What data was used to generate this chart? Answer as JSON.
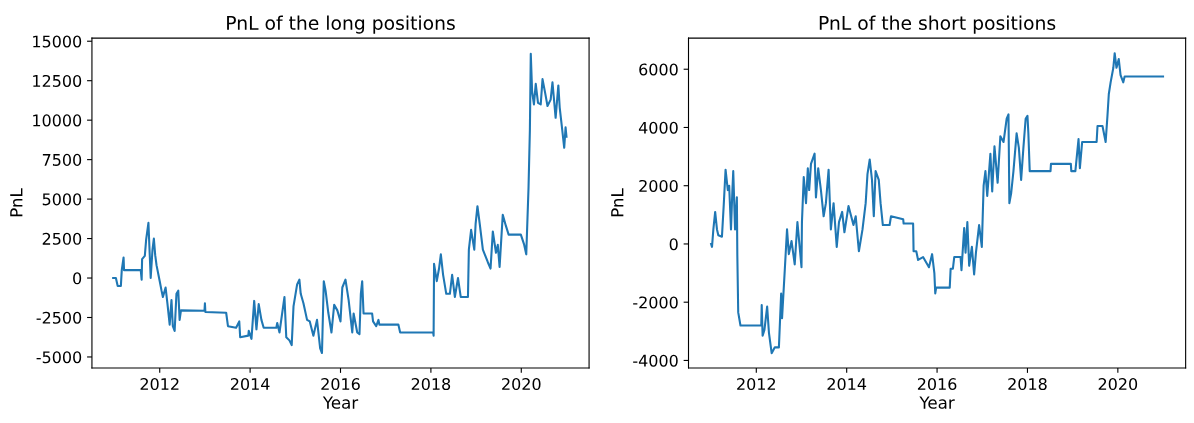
{
  "chart_data": [
    {
      "type": "line",
      "title": "PnL of the long positions",
      "xlabel": "Year",
      "ylabel": "PnL",
      "xlim": [
        2010.5,
        2021.5
      ],
      "xticks": [
        2012,
        2014,
        2016,
        2018,
        2020
      ],
      "ylim": [
        -5700,
        15200
      ],
      "yticks": [
        -5000,
        -2500,
        0,
        2500,
        5000,
        7500,
        10000,
        12500,
        15000
      ],
      "series": [
        {
          "color": "#1f77b4",
          "x": [
            2010.97,
            2011.03,
            2011.07,
            2011.14,
            2011.16,
            2011.2,
            2011.21,
            2011.58,
            2011.6,
            2011.61,
            2011.67,
            2011.7,
            2011.75,
            2011.78,
            2011.8,
            2011.84,
            2011.87,
            2011.9,
            2011.93,
            2012.0,
            2012.04,
            2012.07,
            2012.13,
            2012.17,
            2012.22,
            2012.26,
            2012.29,
            2012.33,
            2012.37,
            2012.41,
            2012.44,
            2012.47,
            2012.99,
            2013.0,
            2013.01,
            2013.47,
            2013.51,
            2013.69,
            2013.76,
            2013.78,
            2013.96,
            2013.97,
            2014.03,
            2014.09,
            2014.14,
            2014.19,
            2014.25,
            2014.3,
            2014.58,
            2014.6,
            2014.65,
            2014.76,
            2014.8,
            2014.87,
            2014.92,
            2014.96,
            2015.04,
            2015.09,
            2015.12,
            2015.18,
            2015.26,
            2015.32,
            2015.4,
            2015.48,
            2015.55,
            2015.59,
            2015.63,
            2015.67,
            2015.73,
            2015.8,
            2015.86,
            2015.93,
            2016.0,
            2016.04,
            2016.11,
            2016.18,
            2016.26,
            2016.29,
            2016.37,
            2016.42,
            2016.45,
            2016.48,
            2016.51,
            2016.7,
            2016.72,
            2016.79,
            2016.84,
            2016.86,
            2017.28,
            2017.32,
            2018.05,
            2018.06,
            2018.07,
            2018.13,
            2018.18,
            2018.22,
            2018.27,
            2018.34,
            2018.42,
            2018.47,
            2018.53,
            2018.6,
            2018.66,
            2018.77,
            2018.82,
            2018.84,
            2018.89,
            2018.96,
            2018.99,
            2019.03,
            2019.08,
            2019.15,
            2019.26,
            2019.32,
            2019.37,
            2019.44,
            2019.48,
            2019.52,
            2019.59,
            2019.66,
            2019.72,
            2019.99,
            2020.06,
            2020.11,
            2020.16,
            2020.19,
            2020.21,
            2020.24,
            2020.28,
            2020.32,
            2020.37,
            2020.43,
            2020.47,
            2020.53,
            2020.58,
            2020.65,
            2020.69,
            2020.76,
            2020.82,
            2020.85,
            2020.9,
            2020.95,
            2020.98,
            2021.0
          ],
          "values": [
            0,
            0,
            -500,
            -500,
            500,
            1300,
            500,
            500,
            -100,
            1200,
            1400,
            2450,
            3500,
            1400,
            0,
            1800,
            2500,
            1450,
            800,
            -200,
            -800,
            -1200,
            -600,
            -1600,
            -2950,
            -1400,
            -3050,
            -3350,
            -1000,
            -800,
            -2650,
            -2050,
            -2070,
            -1600,
            -2150,
            -2200,
            -3050,
            -3150,
            -2750,
            -3750,
            -3650,
            -3350,
            -3850,
            -1450,
            -3250,
            -1650,
            -2650,
            -3150,
            -3150,
            -2850,
            -3450,
            -1200,
            -3750,
            -3950,
            -4250,
            -1800,
            -400,
            -100,
            -1000,
            -1600,
            -2650,
            -2750,
            -3650,
            -2650,
            -4450,
            -4750,
            -200,
            -800,
            -2200,
            -3450,
            -1700,
            -2050,
            -2750,
            -600,
            -100,
            -1400,
            -3450,
            -2250,
            -3450,
            -3550,
            -1000,
            -200,
            -2250,
            -2250,
            -2750,
            -3050,
            -2650,
            -2950,
            -2950,
            -3450,
            -3450,
            -3650,
            900,
            -200,
            600,
            1500,
            200,
            -1000,
            -1000,
            200,
            -1200,
            0,
            -1200,
            -1200,
            -1200,
            1800,
            3050,
            1800,
            3450,
            4550,
            3450,
            1800,
            1000,
            600,
            2950,
            1600,
            2100,
            700,
            4000,
            3300,
            2750,
            2750,
            2150,
            1500,
            5700,
            9350,
            14200,
            11800,
            11000,
            12300,
            11100,
            11000,
            12600,
            11700,
            10900,
            11300,
            12400,
            10150,
            12200,
            10800,
            9550,
            8250,
            9550,
            8950
          ]
        }
      ]
    },
    {
      "type": "line",
      "title": "PnL of the short positions",
      "xlabel": "Year",
      "ylabel": "PnL",
      "xlim": [
        2010.5,
        2021.5
      ],
      "xticks": [
        2012,
        2014,
        2016,
        2018,
        2020
      ],
      "ylim": [
        -4260,
        7070
      ],
      "yticks": [
        -4000,
        -2000,
        0,
        2000,
        4000,
        6000
      ],
      "series": [
        {
          "color": "#1f77b4",
          "x": [
            2011.0,
            2011.02,
            2011.05,
            2011.09,
            2011.13,
            2011.16,
            2011.24,
            2011.28,
            2011.32,
            2011.37,
            2011.4,
            2011.44,
            2011.47,
            2011.49,
            2011.53,
            2011.57,
            2011.58,
            2011.6,
            2011.65,
            2012.11,
            2012.12,
            2012.14,
            2012.18,
            2012.24,
            2012.28,
            2012.34,
            2012.41,
            2012.5,
            2012.55,
            2012.57,
            2012.63,
            2012.68,
            2012.72,
            2012.78,
            2012.85,
            2012.91,
            2013.0,
            2013.01,
            2013.05,
            2013.1,
            2013.14,
            2013.17,
            2013.21,
            2013.29,
            2013.32,
            2013.37,
            2013.43,
            2013.49,
            2013.54,
            2013.6,
            2013.65,
            2013.71,
            2013.78,
            2013.83,
            2013.9,
            2013.95,
            2014.04,
            2014.15,
            2014.2,
            2014.27,
            2014.35,
            2014.42,
            2014.46,
            2014.51,
            2014.56,
            2014.6,
            2014.64,
            2014.71,
            2014.75,
            2014.8,
            2014.95,
            2014.98,
            2015.25,
            2015.26,
            2015.47,
            2015.48,
            2015.54,
            2015.58,
            2015.69,
            2015.82,
            2015.89,
            2015.94,
            2015.96,
            2015.98,
            2016.28,
            2016.3,
            2016.35,
            2016.38,
            2016.52,
            2016.54,
            2016.6,
            2016.63,
            2016.67,
            2016.71,
            2016.77,
            2016.82,
            2016.86,
            2016.93,
            2016.99,
            2017.01,
            2017.03,
            2017.07,
            2017.11,
            2017.18,
            2017.22,
            2017.27,
            2017.34,
            2017.4,
            2017.47,
            2017.54,
            2017.58,
            2017.6,
            2017.64,
            2017.69,
            2017.76,
            2017.81,
            2017.86,
            2017.91,
            2017.96,
            2018.0,
            2018.02,
            2018.05,
            2018.51,
            2018.52,
            2018.96,
            2018.97,
            2019.06,
            2019.13,
            2019.16,
            2019.21,
            2019.26,
            2019.33,
            2019.53,
            2019.55,
            2019.66,
            2019.73,
            2019.77,
            2019.8,
            2019.84,
            2019.9,
            2019.93,
            2019.97,
            2020.02,
            2020.06,
            2020.12,
            2020.15,
            2020.16,
            2021.0
          ],
          "values": [
            0,
            -100,
            500,
            1100,
            500,
            300,
            250,
            1350,
            2550,
            1850,
            2000,
            500,
            1800,
            2500,
            500,
            1600,
            -350,
            -2350,
            -2800,
            -2800,
            -2100,
            -3150,
            -2950,
            -2150,
            -3050,
            -3750,
            -3550,
            -3550,
            -1700,
            -2550,
            -900,
            500,
            -350,
            100,
            -700,
            750,
            -800,
            750,
            2300,
            1400,
            2600,
            1850,
            2750,
            3100,
            1600,
            2600,
            1850,
            950,
            1400,
            2550,
            500,
            1400,
            -100,
            750,
            1100,
            400,
            1300,
            650,
            950,
            -250,
            500,
            1400,
            2400,
            2900,
            2200,
            950,
            2500,
            2200,
            1400,
            650,
            650,
            950,
            850,
            700,
            700,
            -250,
            -250,
            -550,
            -450,
            -800,
            -350,
            -1000,
            -1700,
            -1500,
            -1500,
            -850,
            -850,
            -450,
            -450,
            -900,
            550,
            -300,
            750,
            -750,
            -100,
            -1050,
            -300,
            650,
            -100,
            950,
            2000,
            2500,
            1650,
            3100,
            1800,
            3350,
            2100,
            3700,
            3500,
            4300,
            4450,
            1400,
            1750,
            2500,
            3800,
            3300,
            2200,
            3300,
            4300,
            4400,
            3800,
            2500,
            2500,
            2750,
            2750,
            2500,
            2500,
            3600,
            2600,
            3500,
            3500,
            3500,
            3500,
            4050,
            4050,
            3500,
            4400,
            5150,
            5550,
            6050,
            6550,
            6050,
            6350,
            5800,
            5550,
            5750,
            5750,
            5750
          ]
        }
      ]
    }
  ]
}
